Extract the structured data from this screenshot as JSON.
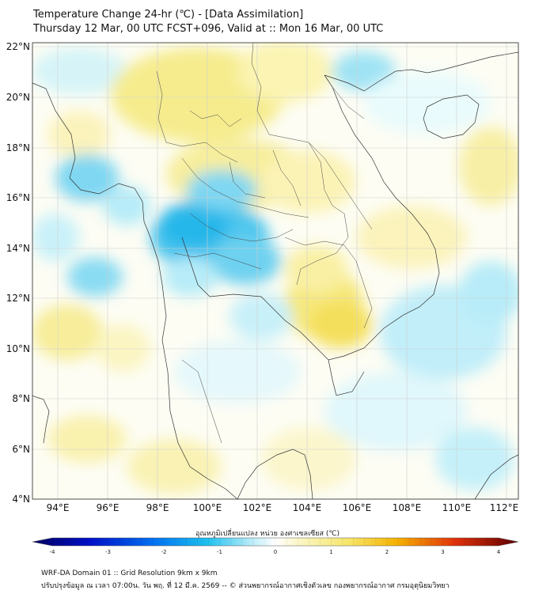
{
  "header": {
    "title_line1": "Temperature Change 24-hr (℃) - [Data Assimilation]",
    "title_line2": "Thursday 12 Mar, 00 UTC FCST+096, Valid at :: Mon 16 Mar, 00 UTC"
  },
  "map": {
    "lat_labels": [
      "22°N",
      "20°N",
      "18°N",
      "16°N",
      "14°N",
      "12°N",
      "10°N",
      "8°N",
      "6°N",
      "4°N"
    ],
    "lon_labels": [
      "94°E",
      "96°E",
      "98°E",
      "100°E",
      "102°E",
      "104°E",
      "106°E",
      "108°E",
      "110°E",
      "112°E"
    ],
    "extent": {
      "lon_min": 93,
      "lon_max": 112.5,
      "lat_min": 4,
      "lat_max": 22.2
    }
  },
  "colorbar": {
    "title": "อุณหภูมิเปลี่ยนแปลง หน่วย องศาเซลเซียส (℃)",
    "min": -4,
    "max": 4,
    "tick_labels": [
      "-4",
      "-3",
      "-2",
      "-1",
      "0",
      "1",
      "2",
      "3",
      "4"
    ]
  },
  "footer": {
    "line1": "WRF-DA Domain 01 :: Grid Resolution 9km x 9km",
    "line2": "ปรับปรุงข้อมูล ณ เวลา 07:00น. วัน พฤ. ที่ 12 มี.ค. 2569 -- © ส่วนพยากรณ์อากาศเชิงตัวเลข กองพยากรณ์อากาศ กรมอุตุนิยมวิทยา"
  }
}
